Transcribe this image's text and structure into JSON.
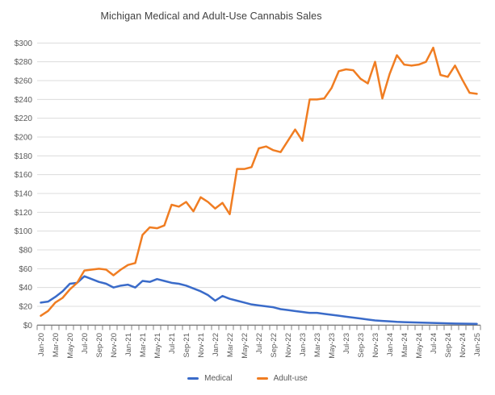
{
  "title": "Michigan Medical and Adult-Use Cannabis Sales",
  "colors": {
    "medical_line": "#3a6bc9",
    "adult_use_line": "#f07d22",
    "gridline": "#dcdcdc",
    "axis_line": "#666666",
    "tick_mark": "#808080",
    "axis_text": "#595959",
    "title_text": "#3f3f3f",
    "background": "#ffffff"
  },
  "chart_data": {
    "type": "line",
    "title": "Michigan Medical and Adult-Use Cannabis Sales",
    "xlabel": "",
    "ylabel": "",
    "ylim": [
      0,
      300
    ],
    "y_tick_step": 20,
    "y_tick_prefix": "$",
    "grid": true,
    "legend_position": "bottom",
    "y_tick_labels": [
      "$0",
      "$20",
      "$40",
      "$60",
      "$80",
      "$100",
      "$120",
      "$140",
      "$160",
      "$180",
      "$200",
      "$220",
      "$240",
      "$260",
      "$280",
      "$300"
    ],
    "x_tick_labels": [
      "Jan-20",
      "Mar-20",
      "May-20",
      "Jul-20",
      "Sep-20",
      "Nov-20",
      "Jan-21",
      "Mar-21",
      "May-21",
      "Jul-21",
      "Sep-21",
      "Nov-21",
      "Jan-22",
      "Mar-22",
      "May-22",
      "Jul-22",
      "Sep-22",
      "Nov-22",
      "Jan-23",
      "Mar-23",
      "May-23",
      "Jul-23",
      "Sep-23",
      "Nov-23",
      "Jan-24",
      "Mar-24",
      "May-24",
      "Jul-24",
      "Sep-24",
      "Nov-24",
      "Jan-25"
    ],
    "categories": [
      "Jan-20",
      "Feb-20",
      "Mar-20",
      "Apr-20",
      "May-20",
      "Jun-20",
      "Jul-20",
      "Aug-20",
      "Sep-20",
      "Oct-20",
      "Nov-20",
      "Dec-20",
      "Jan-21",
      "Feb-21",
      "Mar-21",
      "Apr-21",
      "May-21",
      "Jun-21",
      "Jul-21",
      "Aug-21",
      "Sep-21",
      "Oct-21",
      "Nov-21",
      "Dec-21",
      "Jan-22",
      "Feb-22",
      "Mar-22",
      "Apr-22",
      "May-22",
      "Jun-22",
      "Jul-22",
      "Aug-22",
      "Sep-22",
      "Oct-22",
      "Nov-22",
      "Dec-22",
      "Jan-23",
      "Feb-23",
      "Mar-23",
      "Apr-23",
      "May-23",
      "Jun-23",
      "Jul-23",
      "Aug-23",
      "Sep-23",
      "Oct-23",
      "Nov-23",
      "Dec-23",
      "Jan-24",
      "Feb-24",
      "Mar-24",
      "Apr-24",
      "May-24",
      "Jun-24",
      "Jul-24",
      "Aug-24",
      "Sep-24",
      "Oct-24",
      "Nov-24",
      "Dec-24",
      "Jan-25"
    ],
    "series": [
      {
        "name": "Medical",
        "color": "#3a6bc9",
        "values": [
          24,
          25,
          30,
          36,
          44,
          45,
          52,
          49,
          46,
          44,
          40,
          42,
          43,
          40,
          47,
          46,
          49,
          47,
          45,
          44,
          42,
          39,
          36,
          32,
          26,
          31,
          28,
          26,
          24,
          22,
          21,
          20,
          19,
          17,
          16,
          15,
          14,
          13,
          13,
          12,
          11,
          10,
          9,
          8,
          7,
          6,
          5,
          4.5,
          4,
          3.5,
          3.2,
          3,
          2.7,
          2.5,
          2.3,
          2.1,
          1.9,
          1.7,
          1.6,
          1.5,
          1.4
        ]
      },
      {
        "name": "Adult-use",
        "color": "#f07d22",
        "values": [
          10,
          15,
          24,
          29,
          38,
          45,
          58,
          59,
          60,
          59,
          53,
          59,
          64,
          66,
          96,
          104,
          103,
          106,
          128,
          126,
          131,
          121,
          136,
          131,
          124,
          130,
          118,
          166,
          166,
          168,
          188,
          190,
          186,
          184,
          196,
          208,
          196,
          240,
          240,
          241,
          252,
          270,
          272,
          271,
          262,
          257,
          280,
          241,
          267,
          287,
          277,
          276,
          277,
          280,
          295,
          266,
          264,
          276,
          261,
          247,
          246
        ]
      }
    ]
  }
}
